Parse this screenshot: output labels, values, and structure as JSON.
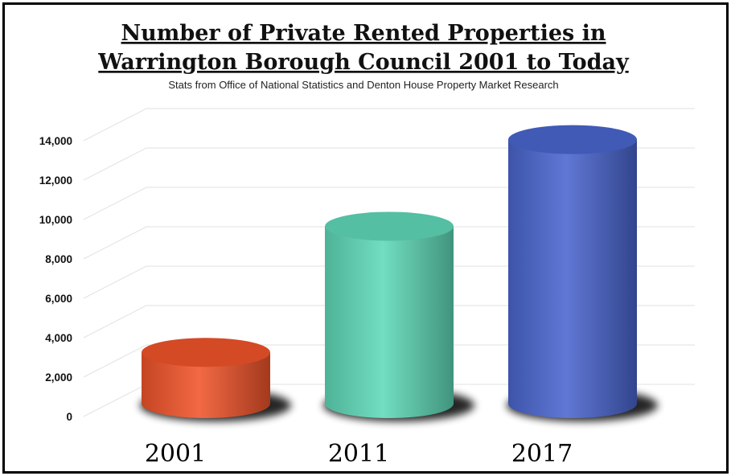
{
  "chart_data": {
    "type": "bar",
    "title_lines": [
      "Number of Private Rented Properties in",
      "Warrington Borough Council 2001 to Today"
    ],
    "subtitle": "Stats from Office of National Statistics and Denton House Property Market Research",
    "categories": [
      "2001",
      "2011",
      "2017"
    ],
    "values": [
      3500,
      9900,
      14300
    ],
    "y_ticks": [
      "0",
      "2,000",
      "4,000",
      "6,000",
      "8,000",
      "10,000",
      "12,000",
      "14,000"
    ],
    "ylim": [
      0,
      14000
    ],
    "grid": true,
    "bar_style": "3d-cylinder",
    "colors": [
      "#f0542a",
      "#5fd9b8",
      "#4a66cf"
    ]
  }
}
